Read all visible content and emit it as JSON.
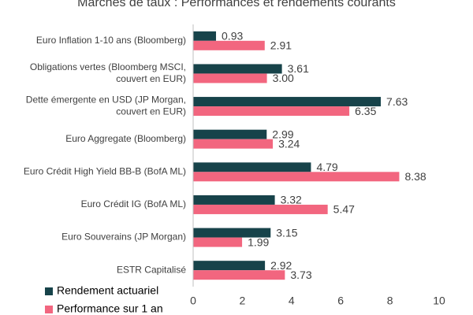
{
  "chart_data": {
    "type": "hbar",
    "title": "Marchés de taux : Performances et rendements courants",
    "categories": [
      "Euro Inflation 1-10 ans (Bloomberg)",
      "Obligations vertes (Bloomberg MSCI,\ncouvert en EUR)",
      "Dette émergente en USD (JP Morgan,\ncouvert en EUR)",
      "Euro Aggregate (Bloomberg)",
      "Euro Crédit High Yield BB-B (BofA ML)",
      "Euro Crédit IG (BofA ML)",
      "Euro Souverains (JP Morgan)",
      "ESTR Capitalisé"
    ],
    "series": [
      {
        "name": "Rendement actuariel",
        "color": "#17434a",
        "values": [
          0.93,
          3.61,
          7.63,
          2.99,
          4.79,
          3.32,
          3.15,
          2.92
        ],
        "value_labels": [
          "0.93",
          "3.61",
          "7.63",
          "2.99",
          "4.79",
          "3.32",
          "3.15",
          "2.92"
        ]
      },
      {
        "name": "Performance sur 1 an",
        "color": "#f2667f",
        "values": [
          2.91,
          3,
          6.35,
          3.24,
          8.38,
          5.47,
          1.99,
          3.73
        ],
        "value_labels": [
          "2.91",
          "3.00",
          "6.35",
          "3.24",
          "8.38",
          "5.47",
          "1.99",
          "3.73"
        ]
      }
    ],
    "xlim": [
      0,
      10
    ],
    "xticks": [
      0,
      2,
      4,
      6,
      8,
      10
    ],
    "grid": false
  }
}
